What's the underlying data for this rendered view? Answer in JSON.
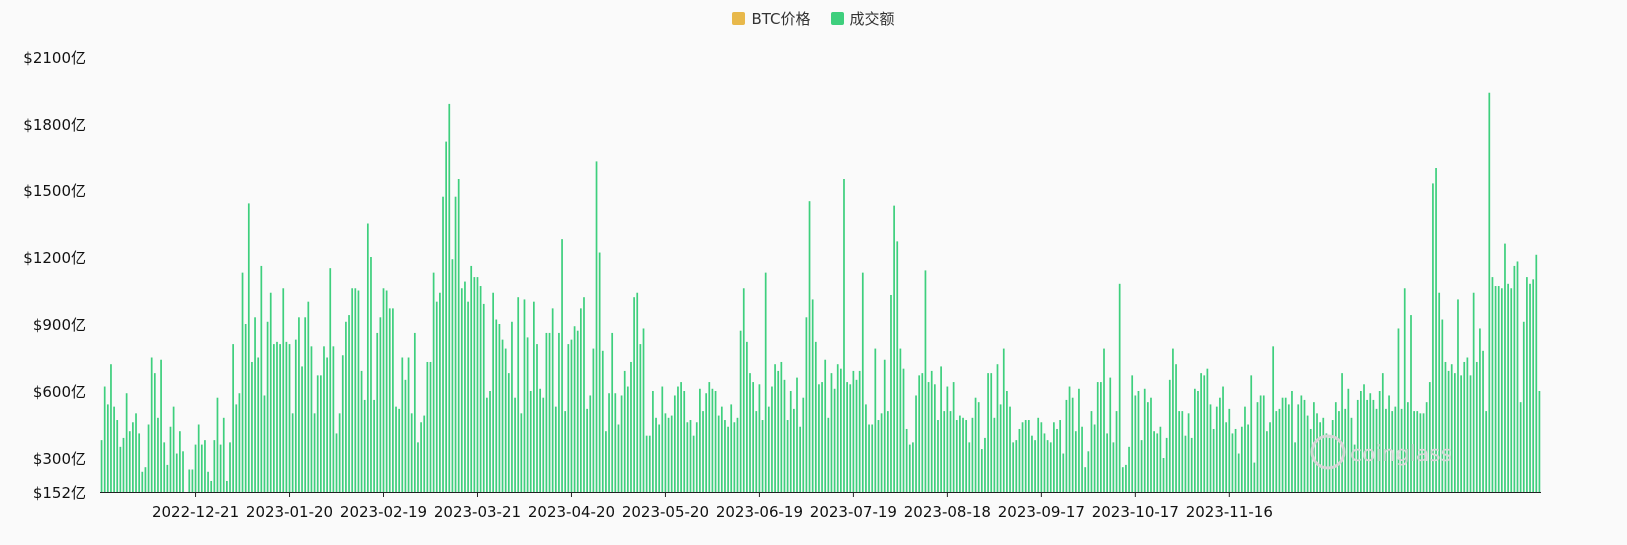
{
  "legend": {
    "price_label": "BTC价格",
    "volume_label": "成交额"
  },
  "colors": {
    "price": "#e8b84a",
    "volume": "#3ecf7d",
    "axis": "#222222",
    "background": "#fafafa"
  },
  "watermark": "coinglass",
  "chart_data": {
    "type": "bar",
    "yunit": "亿",
    "yticks": [
      "$152亿",
      "$300亿",
      "$600亿",
      "$900亿",
      "$1200亿",
      "$1500亿",
      "$1800亿",
      "$2100亿"
    ],
    "ytick_values": [
      152,
      300,
      600,
      900,
      1200,
      1500,
      1800,
      2100
    ],
    "ylim": [
      152,
      2100
    ],
    "xticks": [
      "2022-12-21",
      "2023-01-20",
      "2023-02-19",
      "2023-03-21",
      "2023-04-20",
      "2023-05-20",
      "2023-06-19",
      "2023-07-19",
      "2023-08-18",
      "2023-09-17",
      "2023-10-17",
      "2023-11-16"
    ],
    "xtick_day_index": [
      30,
      60,
      90,
      120,
      150,
      180,
      210,
      240,
      270,
      300,
      330,
      360
    ],
    "x_start": "2022-11-21",
    "series": [
      {
        "name": "成交额",
        "values": [
          380,
          620,
          540,
          720,
          530,
          470,
          350,
          390,
          590,
          420,
          460,
          500,
          410,
          240,
          260,
          450,
          750,
          680,
          480,
          740,
          370,
          270,
          440,
          530,
          320,
          420,
          330,
          152,
          250,
          250,
          360,
          450,
          360,
          380,
          240,
          200,
          380,
          570,
          360,
          480,
          200,
          370,
          810,
          540,
          590,
          1130,
          900,
          1440,
          730,
          930,
          750,
          1160,
          580,
          910,
          1040,
          810,
          820,
          810,
          1060,
          820,
          810,
          500,
          830,
          930,
          710,
          930,
          1000,
          800,
          500,
          670,
          670,
          800,
          750,
          1150,
          800,
          410,
          500,
          760,
          910,
          940,
          1060,
          1060,
          1050,
          690,
          560,
          1350,
          1200,
          560,
          860,
          930,
          1060,
          1050,
          970,
          970,
          530,
          520,
          750,
          650,
          750,
          500,
          860,
          370,
          460,
          490,
          730,
          730,
          1130,
          1000,
          1040,
          1470,
          1720,
          1890,
          1190,
          1470,
          1550,
          1060,
          1090,
          1000,
          1160,
          1110,
          1110,
          1070,
          990,
          570,
          600,
          1040,
          920,
          900,
          830,
          790,
          680,
          910,
          570,
          1020,
          500,
          1010,
          840,
          600,
          1000,
          810,
          610,
          570,
          860,
          860,
          970,
          530,
          860,
          1280,
          510,
          810,
          830,
          890,
          870,
          970,
          1020,
          520,
          580,
          790,
          1630,
          1220,
          780,
          420,
          590,
          860,
          590,
          450,
          580,
          690,
          620,
          730,
          1020,
          1040,
          810,
          880,
          400,
          400,
          600,
          480,
          450,
          620,
          500,
          480,
          490,
          580,
          620,
          640,
          600,
          460,
          470,
          400,
          460,
          610,
          510,
          590,
          640,
          610,
          600,
          490,
          530,
          470,
          440,
          540,
          460,
          480,
          870,
          1060,
          820,
          680,
          640,
          510,
          630,
          470,
          1130,
          530,
          620,
          720,
          690,
          730,
          650,
          470,
          600,
          520,
          660,
          440,
          570,
          930,
          1450,
          1010,
          820,
          630,
          640,
          740,
          480,
          680,
          610,
          720,
          700,
          1550,
          640,
          630,
          690,
          650,
          690,
          1130,
          540,
          450,
          450,
          790,
          470,
          500,
          740,
          510,
          1030,
          1430,
          1270,
          790,
          700,
          430,
          360,
          370,
          580,
          670,
          680,
          1140,
          640,
          690,
          630,
          470,
          710,
          510,
          620,
          510,
          640,
          470,
          490,
          480,
          470,
          370,
          480,
          570,
          550,
          340,
          390,
          680,
          680,
          480,
          720,
          540,
          790,
          600,
          530,
          370,
          380,
          430,
          460,
          470,
          470,
          400,
          380,
          480,
          460,
          410,
          380,
          370,
          460,
          430,
          470,
          320,
          560,
          620,
          570,
          420,
          610,
          440,
          260,
          330,
          510,
          450,
          640,
          640,
          790,
          410,
          660,
          370,
          510,
          1080,
          260,
          270,
          350,
          670,
          580,
          600,
          380,
          610,
          550,
          570,
          420,
          410,
          440,
          300,
          390,
          650,
          790,
          720,
          510,
          510,
          400,
          500,
          390,
          610,
          600,
          680,
          670,
          700,
          540,
          430,
          530,
          570,
          620,
          460,
          520,
          410,
          430,
          320,
          440,
          530,
          450,
          670,
          280,
          550,
          580,
          580,
          420,
          460,
          800,
          510,
          520,
          570,
          570,
          540,
          600,
          370,
          540,
          580,
          560,
          490,
          430,
          550,
          500,
          460,
          480,
          410,
          390,
          470,
          550,
          510,
          680,
          520,
          610,
          480,
          360,
          560,
          600,
          630,
          560,
          590,
          560,
          520,
          600,
          680,
          520,
          580,
          510,
          530,
          880,
          520,
          1060,
          550,
          940,
          510,
          510,
          500,
          500,
          550,
          640,
          1530,
          1600,
          1040,
          920,
          730,
          690,
          720,
          680,
          1010,
          670,
          730,
          750,
          670,
          1040,
          730,
          880,
          780,
          510,
          1940,
          1110,
          1070,
          1070,
          1060,
          1260,
          1080,
          1060,
          1160,
          1180,
          550,
          910,
          1110,
          1080,
          1100,
          1210,
          600
        ]
      }
    ]
  }
}
